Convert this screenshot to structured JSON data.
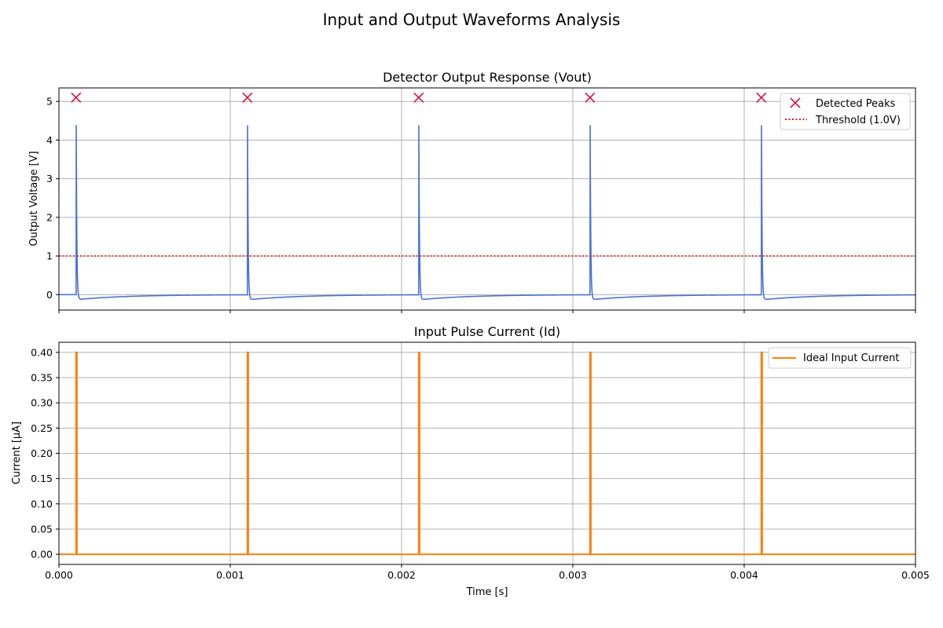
{
  "figure": {
    "title": "Input and Output Waveforms Analysis"
  },
  "chart_data": [
    {
      "id": "top",
      "type": "line",
      "title": "Detector Output Response (Vout)",
      "xlabel": "",
      "ylabel": "Output Voltage [V]",
      "xlim": [
        0,
        0.005
      ],
      "ylim": [
        -0.4,
        5.35
      ],
      "xticks": [
        0,
        0.001,
        0.002,
        0.003,
        0.004,
        0.005
      ],
      "show_xtick_labels": false,
      "yticks": [
        0,
        1,
        2,
        3,
        4,
        5
      ],
      "ytick_labels": [
        "0",
        "1",
        "2",
        "3",
        "4",
        "5"
      ],
      "grid": true,
      "legend_position": "top-right",
      "colors": {
        "signal": "#4a72d8",
        "threshold": "#e31a1c",
        "peaks": "#dc143c"
      },
      "pulse_times": [
        0.0001,
        0.0011,
        0.0021,
        0.0031,
        0.0041
      ],
      "pulse_peak": 5.08,
      "undershoot": -0.13,
      "threshold": 1.0,
      "peaks": {
        "x": [
          0.0001,
          0.0011,
          0.0021,
          0.0031,
          0.0041
        ],
        "y": [
          5.1,
          5.1,
          5.1,
          5.1,
          5.1
        ]
      },
      "legend": [
        "Detected Peaks",
        "Threshold (1.0V)"
      ]
    },
    {
      "id": "bottom",
      "type": "line",
      "title": "Input Pulse Current (Id)",
      "xlabel": "Time [s]",
      "ylabel": "Current [μA]",
      "xlim": [
        0,
        0.005
      ],
      "ylim": [
        -0.02,
        0.42
      ],
      "xticks": [
        0,
        0.001,
        0.002,
        0.003,
        0.004,
        0.005
      ],
      "xtick_labels": [
        "0.000",
        "0.001",
        "0.002",
        "0.003",
        "0.004",
        "0.005"
      ],
      "yticks": [
        0,
        0.05,
        0.1,
        0.15,
        0.2,
        0.25,
        0.3,
        0.35,
        0.4
      ],
      "ytick_labels": [
        "0.00",
        "0.05",
        "0.10",
        "0.15",
        "0.20",
        "0.25",
        "0.30",
        "0.35",
        "0.40"
      ],
      "grid": true,
      "legend_position": "top-right",
      "colors": {
        "signal": "#ff7f0e"
      },
      "pulse_times": [
        0.0001,
        0.0011,
        0.0021,
        0.0031,
        0.0041
      ],
      "pulse_width": 5e-06,
      "pulse_amplitude": 0.4,
      "legend": [
        "Ideal Input Current"
      ]
    }
  ]
}
